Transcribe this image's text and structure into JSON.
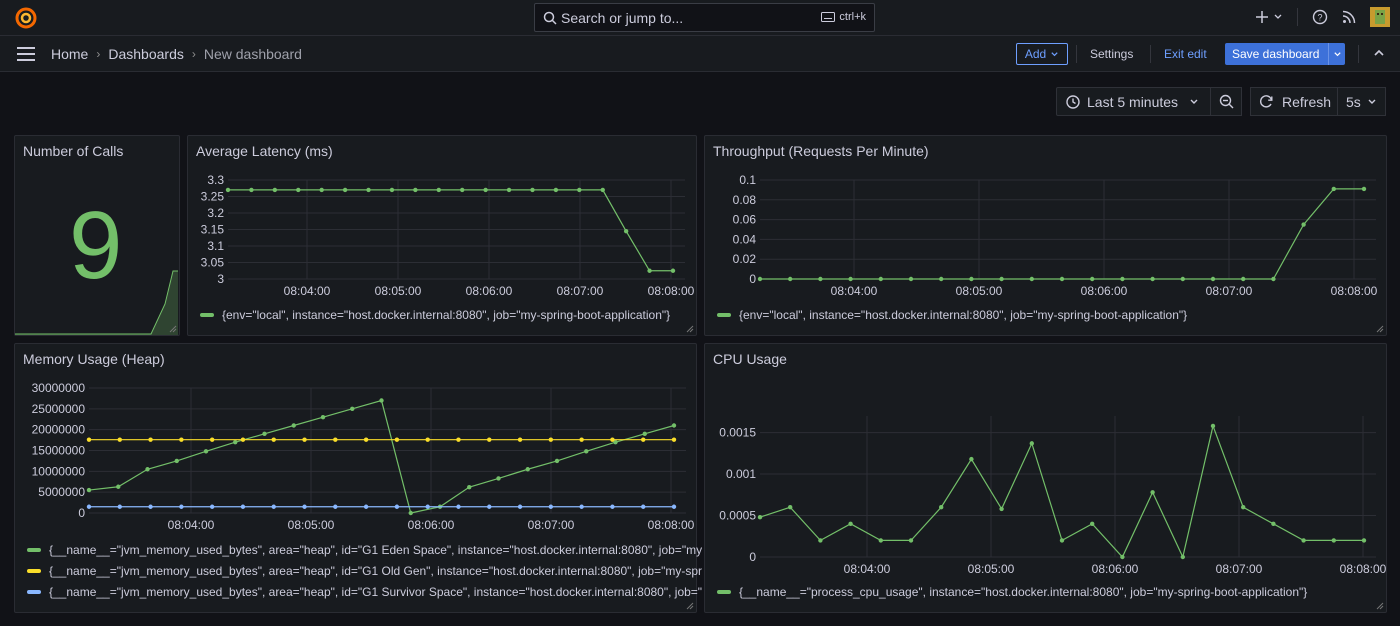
{
  "search": {
    "placeholder": "Search or jump to...",
    "shortcut": "ctrl+k"
  },
  "breadcrumb": {
    "home": "Home",
    "dashboards": "Dashboards",
    "current": "New dashboard"
  },
  "toolbar": {
    "add_label": "Add",
    "settings_label": "Settings",
    "exit_label": "Exit edit",
    "save_label": "Save dashboard"
  },
  "timepicker": {
    "range": "Last 5 minutes",
    "refresh_label": "Refresh",
    "interval": "5s"
  },
  "colors": {
    "green": "#73bf69",
    "yellow": "#fade2a",
    "blue": "#8ab8ff"
  },
  "panels": {
    "calls": {
      "title": "Number of Calls",
      "value": "9"
    },
    "latency": {
      "title": "Average Latency (ms)",
      "legend": "{env=\"local\", instance=\"host.docker.internal:8080\", job=\"my-spring-boot-application\"}"
    },
    "throughput": {
      "title": "Throughput (Requests Per Minute)",
      "legend": "{env=\"local\", instance=\"host.docker.internal:8080\", job=\"my-spring-boot-application\"}"
    },
    "memory": {
      "title": "Memory Usage (Heap)",
      "legend": [
        "{__name__=\"jvm_memory_used_bytes\", area=\"heap\", id=\"G1 Eden Space\", instance=\"host.docker.internal:8080\", job=\"my",
        "{__name__=\"jvm_memory_used_bytes\", area=\"heap\", id=\"G1 Old Gen\", instance=\"host.docker.internal:8080\", job=\"my-spr",
        "{__name__=\"jvm_memory_used_bytes\", area=\"heap\", id=\"G1 Survivor Space\", instance=\"host.docker.internal:8080\", job=\""
      ]
    },
    "cpu": {
      "title": "CPU Usage",
      "legend": "{__name__=\"process_cpu_usage\", instance=\"host.docker.internal:8080\", job=\"my-spring-boot-application\"}"
    }
  },
  "chart_data": [
    {
      "type": "line",
      "x_ticks": [
        "08:04:00",
        "08:05:00",
        "08:06:00",
        "08:07:00",
        "08:08:00"
      ],
      "y_ticks": [
        "3",
        "3.05",
        "3.1",
        "3.15",
        "3.2",
        "3.25",
        "3.3"
      ],
      "ylim": [
        3,
        3.3
      ],
      "series": [
        {
          "values": [
            3.27,
            3.27,
            3.27,
            3.27,
            3.27,
            3.27,
            3.27,
            3.27,
            3.27,
            3.27,
            3.27,
            3.27,
            3.27,
            3.27,
            3.27,
            3.27,
            3.27,
            3.145,
            3.025,
            3.025
          ]
        }
      ]
    },
    {
      "type": "line",
      "x_ticks": [
        "08:04:00",
        "08:05:00",
        "08:06:00",
        "08:07:00",
        "08:08:00"
      ],
      "y_ticks": [
        "0",
        "0.02",
        "0.04",
        "0.06",
        "0.08",
        "0.1"
      ],
      "ylim": [
        0,
        0.1
      ],
      "series": [
        {
          "values": [
            0,
            0,
            0,
            0,
            0,
            0,
            0,
            0,
            0,
            0,
            0,
            0,
            0,
            0,
            0,
            0,
            0,
            0,
            0.055,
            0.091,
            0.091
          ]
        }
      ]
    },
    {
      "type": "line",
      "x_ticks": [
        "08:04:00",
        "08:05:00",
        "08:06:00",
        "08:07:00",
        "08:08:00"
      ],
      "y_ticks": [
        "0",
        "5000000",
        "10000000",
        "15000000",
        "20000000",
        "25000000",
        "30000000"
      ],
      "ylim": [
        0,
        30000000
      ],
      "series": [
        {
          "values": [
            5500000,
            6300000,
            10500000,
            12500000,
            14800000,
            17000000,
            19000000,
            21000000,
            23000000,
            25000000,
            27000000,
            0,
            1500000,
            6200000,
            8300000,
            10500000,
            12500000,
            14800000,
            17000000,
            19000000,
            21000000
          ]
        },
        {
          "values": [
            17600000,
            17600000,
            17600000,
            17600000,
            17600000,
            17600000,
            17600000,
            17600000,
            17600000,
            17600000,
            17600000,
            17600000,
            17600000,
            17600000,
            17600000,
            17600000,
            17600000,
            17600000,
            17600000,
            17600000
          ]
        },
        {
          "values": [
            1500000,
            1500000,
            1500000,
            1500000,
            1500000,
            1500000,
            1500000,
            1500000,
            1500000,
            1500000,
            1500000,
            1500000,
            1500000,
            1500000,
            1500000,
            1500000,
            1500000,
            1500000,
            1500000,
            1500000
          ]
        }
      ]
    },
    {
      "type": "line",
      "x_ticks": [
        "08:04:00",
        "08:05:00",
        "08:06:00",
        "08:07:00",
        "08:08:00"
      ],
      "y_ticks": [
        "0",
        "0.0005",
        "0.001",
        "0.0015"
      ],
      "ylim": [
        0,
        0.0017
      ],
      "series": [
        {
          "values": [
            0.00048,
            0.0006,
            0.0002,
            0.0004,
            0.0002,
            0.0002,
            0.0006,
            0.00118,
            0.00058,
            0.00137,
            0.0002,
            0.0004,
            0,
            0.00078,
            0,
            0.00158,
            0.0006,
            0.0004,
            0.0002,
            0.0002,
            0.0002
          ]
        }
      ]
    }
  ]
}
